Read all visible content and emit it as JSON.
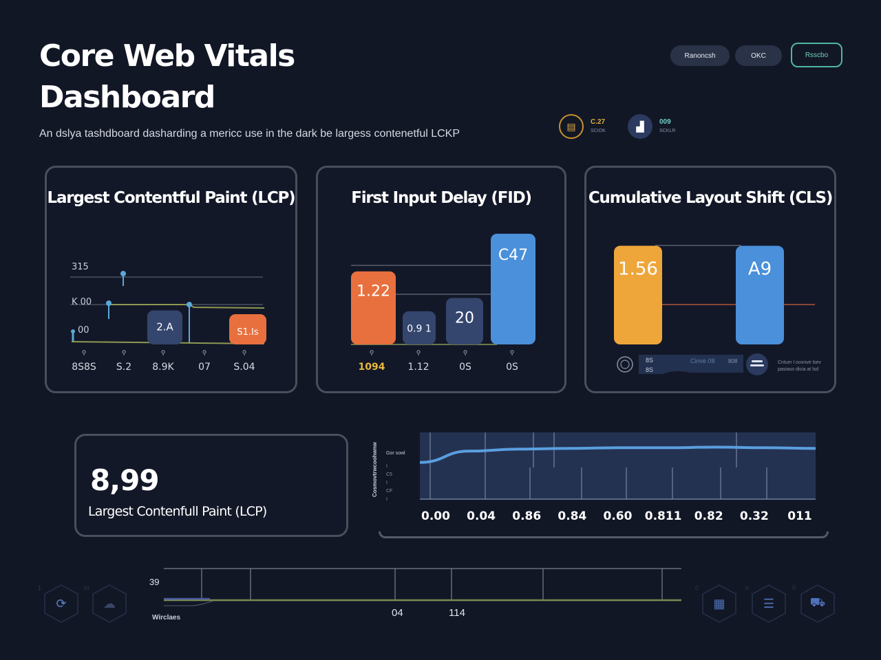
{
  "header": {
    "title": "Core Web Vitals Dashboard",
    "subtitle": "An dslya tashdboard dasharding a mericc use in the dark be largess contenetful LCKP",
    "buttons": [
      {
        "label": "Ranoncsh"
      },
      {
        "label": "OKC"
      },
      {
        "label": "Rsscbo"
      }
    ],
    "stat_chips": [
      {
        "icon": "gauge-icon",
        "value": "C.27",
        "label": "SCIOK"
      },
      {
        "icon": "chart-icon",
        "value": "009",
        "label": "SCKLR"
      }
    ]
  },
  "colors": {
    "background": "#121726",
    "card_border": "#4a4f5c",
    "orange": "#e8703e",
    "amber": "#eea63a",
    "blue": "#4a90da",
    "navy": "#34466e",
    "teal": "#4fb9a0",
    "line_olive": "#8d9a52"
  },
  "cards": {
    "lcp": {
      "title": "Largest Contentful Paint (LCP)",
      "y_ticks": [
        "315",
        "K 00",
        "00"
      ],
      "bars": [
        {
          "label": "2.A",
          "color": "#34466e",
          "value": 0.45
        },
        {
          "label": "S1.Is",
          "color": "#e8703e",
          "value": 0.4
        }
      ],
      "x_labels": [
        "8S8S",
        "S.2",
        "8.9K",
        "07",
        "S.04"
      ]
    },
    "fid": {
      "title": "First Input Delay  (FID)",
      "bars": [
        {
          "label": "1.22",
          "color": "#e8703e",
          "value": 0.66
        },
        {
          "label": "0.9 1",
          "color": "#34466e",
          "value": 0.3
        },
        {
          "label": "20",
          "color": "#34466e",
          "value": 0.42
        },
        {
          "label": "C47",
          "color": "#4a90da",
          "value": 1.0
        }
      ],
      "x_labels": [
        "1094",
        "1.12",
        "0S",
        "0S"
      ],
      "x_label_highlight": "#e6b83c"
    },
    "cls": {
      "title": "Cumulative Layout Shift (CLS)",
      "bars": [
        {
          "label": "1.56",
          "color": "#eea63a",
          "value": 0.95
        },
        {
          "label": "A9",
          "color": "#4a90da",
          "value": 0.95
        }
      ],
      "footer": {
        "left_text_top": "8S",
        "left_text_bottom": "8S",
        "mid_text": "Cinve.08",
        "mid_value": "808",
        "caption_line1": "Cntum l ooxnve lsev",
        "caption_line2": "pasiaso dicia at lsd"
      }
    }
  },
  "summary": {
    "value": "8,99",
    "label": "Largest Contenfull Paint (LCP)"
  },
  "trend_chart": {
    "y_axis_label": "Cosmovtrwcoohwnw",
    "legend": "Gor sowl",
    "minor_ticks": [
      "I",
      "C5",
      "I",
      "CF",
      "I"
    ],
    "x_ticks": [
      "0.00",
      "0.04",
      "0.86",
      "0.84",
      "0.60",
      "0.811",
      "0.82",
      "0.32",
      "011"
    ],
    "line_values": [
      0.55,
      0.72,
      0.75,
      0.76,
      0.77,
      0.77,
      0.78,
      0.77,
      0.76
    ],
    "y_range": [
      0,
      1
    ]
  },
  "timeline": {
    "y_tick": "39",
    "x_ticks": [
      "04",
      "114"
    ],
    "label": "Wirclaes"
  },
  "nav_left": [
    {
      "icon": "sync-icon",
      "tag": "1"
    },
    {
      "icon": "cloud-icon",
      "tag": "m"
    }
  ],
  "nav_right": [
    {
      "icon": "grid-icon",
      "tag": "0"
    },
    {
      "icon": "table-icon",
      "tag": "h"
    },
    {
      "icon": "bag-icon",
      "tag": "0"
    }
  ]
}
